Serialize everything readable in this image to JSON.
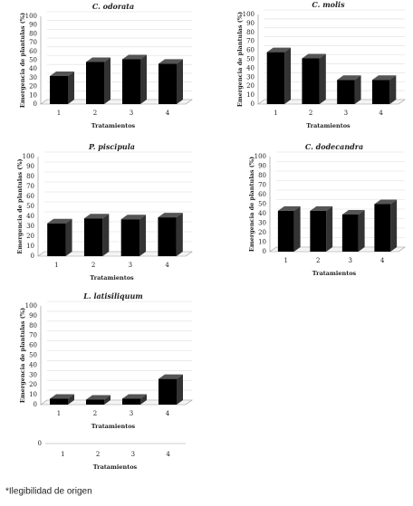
{
  "chart_data": [
    {
      "type": "bar",
      "title": "C. odorata",
      "categories": [
        "1",
        "2",
        "3",
        "4"
      ],
      "values": [
        32,
        48,
        51,
        46
      ],
      "color": "#000000",
      "xlabel": "Tratamientos",
      "ylabel": "Emergencia de plantulas (%)",
      "ylim": [
        0,
        100
      ],
      "yticks": [
        0,
        10,
        20,
        30,
        40,
        50,
        60,
        70,
        80,
        90,
        100
      ],
      "grid": true
    },
    {
      "type": "bar",
      "title": "C. molis",
      "categories": [
        "1",
        "2",
        "3",
        "4"
      ],
      "values": [
        58,
        51,
        27,
        27
      ],
      "color": "#000000",
      "xlabel": "Tratamientos",
      "ylabel": "Emergencia de plantulas (%)",
      "ylim": [
        0,
        100
      ],
      "yticks": [
        0,
        10,
        20,
        30,
        40,
        50,
        60,
        70,
        80,
        90,
        100
      ],
      "grid": true
    },
    {
      "type": "bar",
      "title": "P. piscipula",
      "categories": [
        "1",
        "2",
        "3",
        "4"
      ],
      "values": [
        33,
        38,
        37,
        39
      ],
      "color": "#000000",
      "xlabel": "Tratamientos",
      "ylabel": "Emergencia de plantulas (%)",
      "ylim": [
        0,
        100
      ],
      "yticks": [
        0,
        10,
        20,
        30,
        40,
        50,
        60,
        70,
        80,
        90,
        100
      ],
      "grid": true
    },
    {
      "type": "bar",
      "title": "C. dodecandra",
      "categories": [
        "1",
        "2",
        "3",
        "4"
      ],
      "values": [
        43,
        43,
        39,
        50
      ],
      "color": "#000000",
      "xlabel": "Tratamientos",
      "ylabel": "Emergencia de plantulas (%)",
      "ylim": [
        0,
        100
      ],
      "yticks": [
        0,
        10,
        20,
        30,
        40,
        50,
        60,
        70,
        80,
        90,
        100
      ],
      "grid": true
    },
    {
      "type": "bar",
      "title": "L. latisiliquum",
      "categories": [
        "1",
        "2",
        "3",
        "4"
      ],
      "values": [
        6,
        5,
        6,
        26
      ],
      "color": "#000000",
      "xlabel": "Tratamientos",
      "ylabel": "Emergencia de plantulas (%)",
      "ylim": [
        0,
        100
      ],
      "yticks": [
        0,
        10,
        20,
        30,
        40,
        50,
        60,
        70,
        80,
        90,
        100
      ],
      "grid": true
    }
  ],
  "stray_axis": {
    "zero": "0",
    "labels": [
      "1",
      "2",
      "3",
      "4"
    ],
    "label": "Tratamientos"
  },
  "footnote": "*Ilegibilidad de origen"
}
